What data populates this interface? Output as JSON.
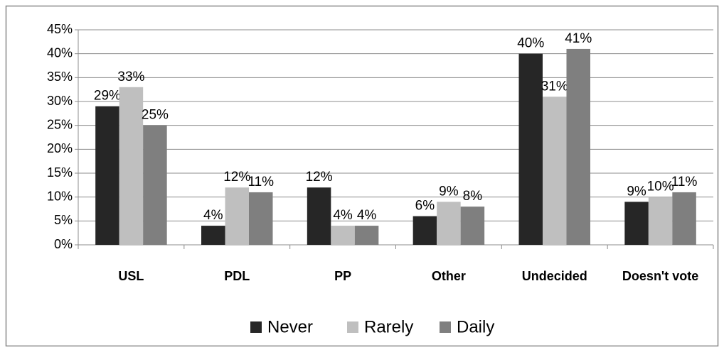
{
  "chart_data": {
    "type": "bar",
    "categories": [
      "USL",
      "PDL",
      "PP",
      "Other",
      "Undecided",
      "Doesn't vote"
    ],
    "series": [
      {
        "name": "Never",
        "color": "#262626",
        "values": [
          29,
          4,
          12,
          6,
          40,
          9
        ],
        "value_labels": [
          "29%",
          "4%",
          "12%",
          "6%",
          "40%",
          "9%"
        ]
      },
      {
        "name": "Rarely",
        "color": "#bfbfbf",
        "values": [
          33,
          12,
          4,
          9,
          31,
          10
        ],
        "value_labels": [
          "33%",
          "12%",
          "4%",
          "9%",
          "31%",
          "10%"
        ]
      },
      {
        "name": "Daily",
        "color": "#7f7f7f",
        "values": [
          25,
          11,
          4,
          8,
          41,
          11
        ],
        "value_labels": [
          "25%",
          "11%",
          "4%",
          "8%",
          "41%",
          "11%"
        ]
      }
    ],
    "ylim": [
      0,
      45
    ],
    "yticks": [
      {
        "value": 0,
        "label": "0%"
      },
      {
        "value": 5,
        "label": "5%"
      },
      {
        "value": 10,
        "label": "10%"
      },
      {
        "value": 15,
        "label": "15%"
      },
      {
        "value": 20,
        "label": "20%"
      },
      {
        "value": 25,
        "label": "25%"
      },
      {
        "value": 30,
        "label": "30%"
      },
      {
        "value": 35,
        "label": "35%"
      },
      {
        "value": 40,
        "label": "40%"
      },
      {
        "value": 45,
        "label": "45%"
      }
    ],
    "grid": true,
    "legend": "bottom"
  }
}
